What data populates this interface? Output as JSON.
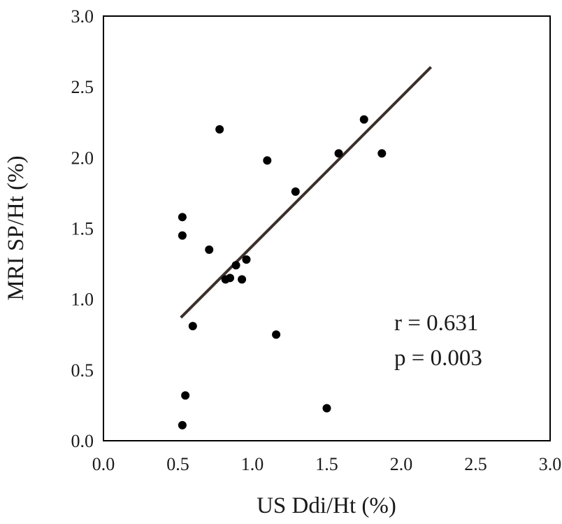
{
  "chart_data": {
    "type": "scatter",
    "title": "",
    "xlabel": "US Ddi/Ht (%)",
    "ylabel": "MRI SP/Ht (%)",
    "xlim": [
      0,
      3
    ],
    "ylim": [
      0,
      3
    ],
    "xticks": [
      "0.0",
      "0.5",
      "1.0",
      "1.5",
      "2.0",
      "2.5",
      "3.0"
    ],
    "yticks": [
      "0.0",
      "0.5",
      "1.0",
      "1.5",
      "2.0",
      "2.5",
      "3.0"
    ],
    "grid": false,
    "points": [
      {
        "x": 0.53,
        "y": 1.58
      },
      {
        "x": 0.53,
        "y": 1.45
      },
      {
        "x": 0.53,
        "y": 0.11
      },
      {
        "x": 0.55,
        "y": 0.32
      },
      {
        "x": 0.6,
        "y": 0.81
      },
      {
        "x": 0.71,
        "y": 1.35
      },
      {
        "x": 0.78,
        "y": 2.2
      },
      {
        "x": 0.82,
        "y": 1.14
      },
      {
        "x": 0.85,
        "y": 1.15
      },
      {
        "x": 0.89,
        "y": 1.24
      },
      {
        "x": 0.93,
        "y": 1.14
      },
      {
        "x": 0.96,
        "y": 1.28
      },
      {
        "x": 1.1,
        "y": 1.98
      },
      {
        "x": 1.16,
        "y": 0.75
      },
      {
        "x": 1.29,
        "y": 1.76
      },
      {
        "x": 1.5,
        "y": 0.23
      },
      {
        "x": 1.58,
        "y": 2.03
      },
      {
        "x": 1.75,
        "y": 2.27
      },
      {
        "x": 1.87,
        "y": 2.03
      }
    ],
    "trendline": {
      "x1": 0.52,
      "y1": 0.87,
      "x2": 2.2,
      "y2": 2.64
    },
    "annotations": [
      "r = 0.631",
      "p = 0.003"
    ],
    "colors": {
      "points": "#000000",
      "trendline": "#3a2f2a",
      "axis": "#000000"
    }
  }
}
